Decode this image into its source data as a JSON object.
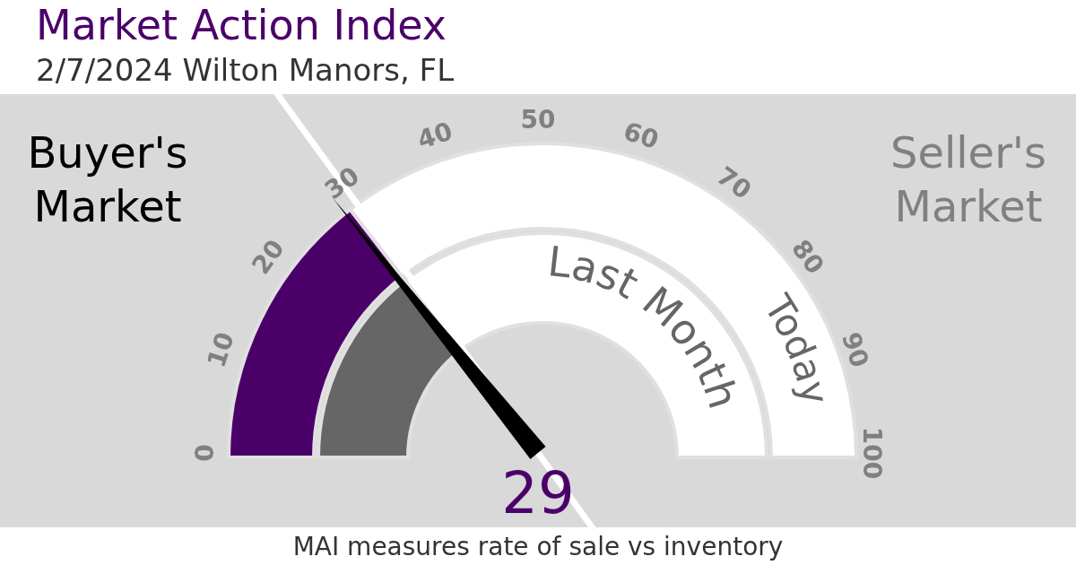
{
  "chart_data": {
    "type": "donut",
    "title": "Market Action Index",
    "subtitle": "2/7/2024 Wilton Manors, FL",
    "categories": [
      null,
      null
    ],
    "series": [
      {
        "name": "Today",
        "colors": [
          "#4b0069",
          "#ffffff"
        ],
        "values": [
          29,
          71
        ]
      },
      {
        "name": "Last Month",
        "colors": [
          "#666666",
          "#ffffff"
        ],
        "values": [
          29,
          71
        ]
      }
    ],
    "annotations": [
      "Buyer's Market",
      "Seller's Market",
      "MAI measures rate of sale vs inventory",
      "29",
      "0",
      "10",
      "20",
      "30",
      "40",
      "50",
      "60",
      "70",
      "80",
      "90",
      "100"
    ]
  }
}
